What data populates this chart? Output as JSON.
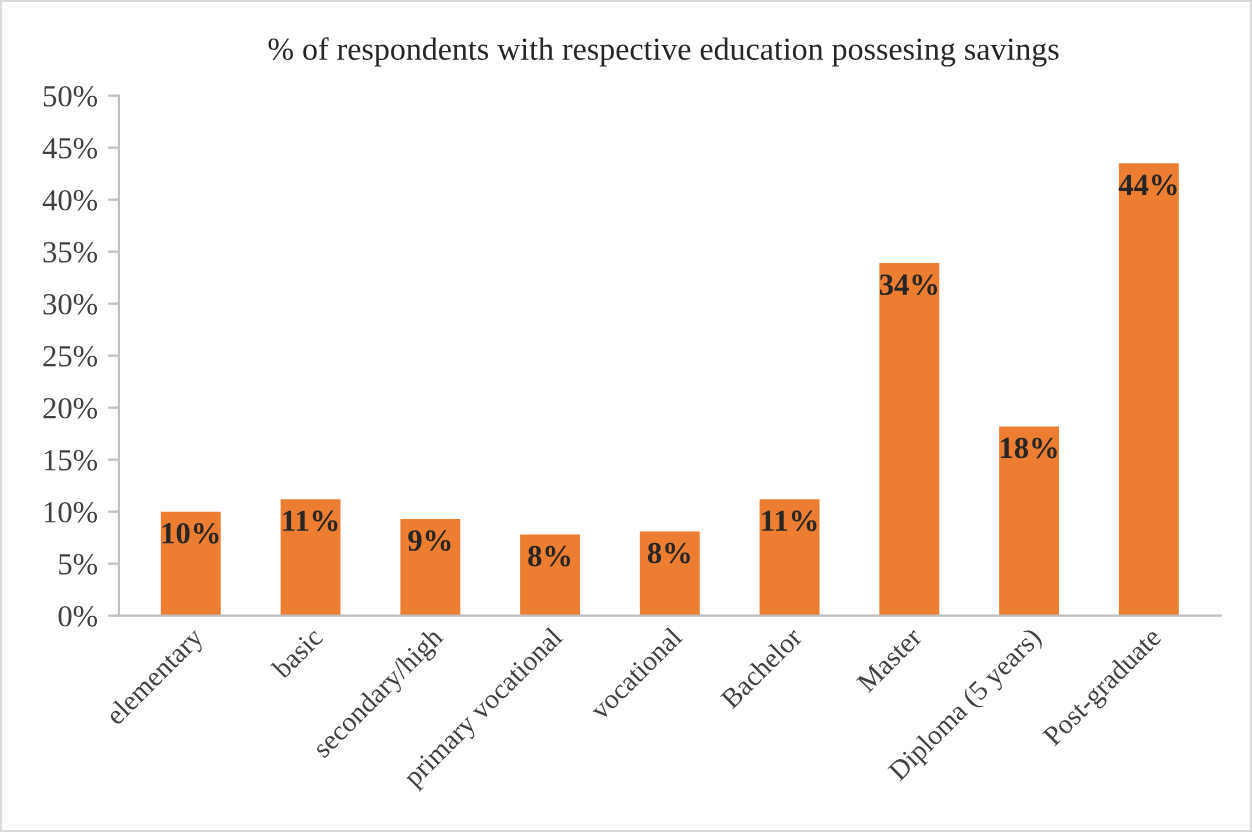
{
  "chart_data": {
    "type": "bar",
    "title": "% of respondents with respective education possesing savings",
    "categories": [
      "elementary",
      "basic",
      "secondary/high",
      "primary vocational",
      "vocational",
      "Bachelor",
      "Master",
      "Diploma (5 years)",
      "Post-graduate"
    ],
    "values": [
      10.0,
      11.2,
      9.3,
      7.8,
      8.1,
      11.2,
      33.9,
      18.2,
      43.5
    ],
    "value_labels": [
      "10%",
      "11%",
      "9%",
      "8%",
      "8%",
      "11%",
      "34%",
      "18%",
      "44%"
    ],
    "color": "#ed7d31",
    "ylim": [
      0,
      50
    ],
    "yticks": [
      {
        "value": 0,
        "label": "0%"
      },
      {
        "value": 5,
        "label": "5%"
      },
      {
        "value": 10,
        "label": "10%"
      },
      {
        "value": 15,
        "label": "15%"
      },
      {
        "value": 20,
        "label": "20%"
      },
      {
        "value": 25,
        "label": "25%"
      },
      {
        "value": 30,
        "label": "30%"
      },
      {
        "value": 35,
        "label": "35%"
      },
      {
        "value": 40,
        "label": "40%"
      },
      {
        "value": 45,
        "label": "45%"
      },
      {
        "value": 50,
        "label": "50%"
      }
    ],
    "grid": false
  }
}
